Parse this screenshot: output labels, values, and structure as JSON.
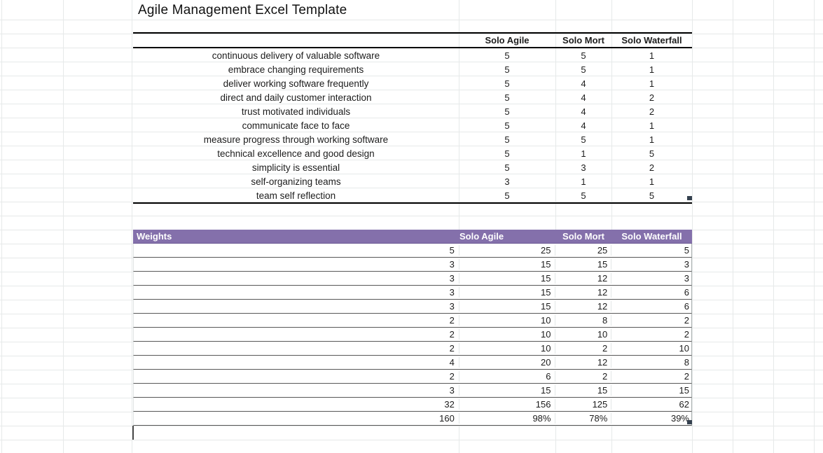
{
  "title": "Agile Management Excel Template",
  "scores_table": {
    "columns": [
      "Solo Agile",
      "Solo Mort",
      "Solo Waterfall"
    ],
    "rows": [
      {
        "label": "continuous delivery of valuable software",
        "values": [
          "5",
          "5",
          "1"
        ]
      },
      {
        "label": "embrace changing requirements",
        "values": [
          "5",
          "5",
          "1"
        ]
      },
      {
        "label": "deliver working software frequently",
        "values": [
          "5",
          "4",
          "1"
        ]
      },
      {
        "label": "direct and daily customer interaction",
        "values": [
          "5",
          "4",
          "2"
        ]
      },
      {
        "label": "trust motivated individuals",
        "values": [
          "5",
          "4",
          "2"
        ]
      },
      {
        "label": "communicate face to face",
        "values": [
          "5",
          "4",
          "1"
        ]
      },
      {
        "label": "measure progress through working software",
        "values": [
          "5",
          "5",
          "1"
        ]
      },
      {
        "label": "technical excellence and good design",
        "values": [
          "5",
          "1",
          "5"
        ]
      },
      {
        "label": "simplicity is essential",
        "values": [
          "5",
          "3",
          "2"
        ]
      },
      {
        "label": "self-organizing teams",
        "values": [
          "3",
          "1",
          "1"
        ]
      },
      {
        "label": "team self reflection",
        "values": [
          "5",
          "5",
          "5"
        ]
      }
    ]
  },
  "weights_table": {
    "accent_color": "#8470ab",
    "header_label": "Weights",
    "columns": [
      "Solo Agile",
      "Solo Mort",
      "Solo Waterfall"
    ],
    "rows": [
      {
        "weight": "5",
        "values": [
          "25",
          "25",
          "5"
        ]
      },
      {
        "weight": "3",
        "values": [
          "15",
          "15",
          "3"
        ]
      },
      {
        "weight": "3",
        "values": [
          "15",
          "12",
          "3"
        ]
      },
      {
        "weight": "3",
        "values": [
          "15",
          "12",
          "6"
        ]
      },
      {
        "weight": "3",
        "values": [
          "15",
          "12",
          "6"
        ]
      },
      {
        "weight": "2",
        "values": [
          "10",
          "8",
          "2"
        ]
      },
      {
        "weight": "2",
        "values": [
          "10",
          "10",
          "2"
        ]
      },
      {
        "weight": "2",
        "values": [
          "10",
          "2",
          "10"
        ]
      },
      {
        "weight": "4",
        "values": [
          "20",
          "12",
          "8"
        ]
      },
      {
        "weight": "2",
        "values": [
          "6",
          "2",
          "2"
        ]
      },
      {
        "weight": "3",
        "values": [
          "15",
          "15",
          "15"
        ]
      },
      {
        "weight": "32",
        "values": [
          "156",
          "125",
          "62"
        ]
      },
      {
        "weight": "160",
        "values": [
          "98%",
          "78%",
          "39%"
        ]
      }
    ]
  }
}
